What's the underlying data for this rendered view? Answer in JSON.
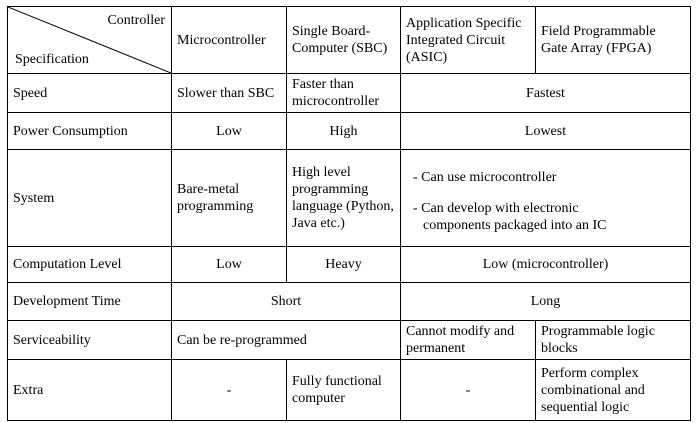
{
  "header": {
    "controller_label": "Controller",
    "specification_label": "Specification",
    "columns": [
      "Microcontroller",
      "Single Board-Computer (SBC)",
      "Application Specific Integrated Circuit (ASIC)",
      "Field Programmable Gate Array (FPGA)"
    ]
  },
  "rows": {
    "speed": {
      "label": "Speed",
      "microcontroller": "Slower than SBC",
      "sbc": "Faster than microcontroller",
      "asic_fpga": "Fastest"
    },
    "power": {
      "label": "Power Consumption",
      "microcontroller": "Low",
      "sbc": "High",
      "asic_fpga": "Lowest"
    },
    "system": {
      "label": "System",
      "microcontroller": "Bare-metal programming",
      "sbc": "High level programming language (Python, Java etc.)",
      "asic_fpga_line1": "- Can use microcontroller",
      "asic_fpga_line2a": "- Can develop with electronic",
      "asic_fpga_line2b": "components packaged into an IC"
    },
    "computation": {
      "label": "Computation Level",
      "microcontroller": "Low",
      "sbc": "Heavy",
      "asic_fpga": "Low (microcontroller)"
    },
    "development": {
      "label": "Development Time",
      "mcu_sbc": "Short",
      "asic_fpga": "Long"
    },
    "serviceability": {
      "label": "Serviceability",
      "mcu_sbc": "Can be re-programmed",
      "asic": "Cannot modify and permanent",
      "fpga": "Programmable logic blocks"
    },
    "extra": {
      "label": "Extra",
      "microcontroller": "-",
      "sbc": "Fully functional computer",
      "asic": "-",
      "fpga": "Perform complex combinational and sequential logic"
    }
  }
}
